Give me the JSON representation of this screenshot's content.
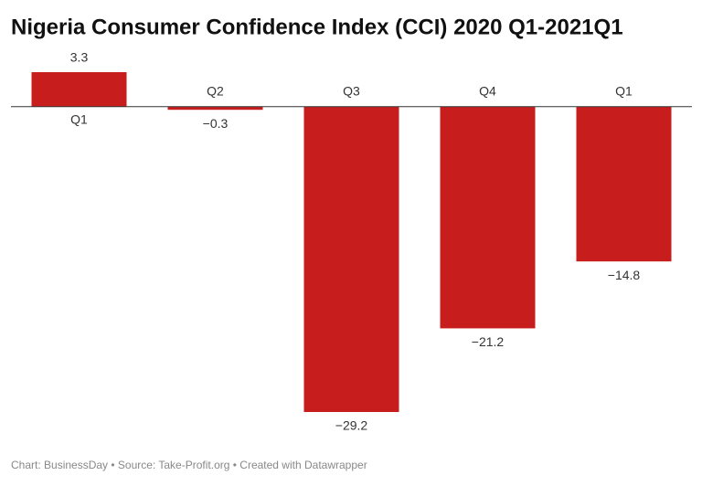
{
  "chart_data": {
    "type": "bar",
    "title": "Nigeria Consumer Confidence Index (CCI) 2020 Q1-2021Q1",
    "categories": [
      "Q1",
      "Q2",
      "Q3",
      "Q4",
      "Q1"
    ],
    "values": [
      3.3,
      -0.3,
      -29.2,
      -21.2,
      -14.8
    ],
    "value_labels": [
      "3.3",
      "−0.3",
      "−29.2",
      "−21.2",
      "−14.8"
    ],
    "color": "#c71e1d",
    "ylim": [
      -29.2,
      3.3
    ],
    "caption": "Chart: BusinessDay • Source: Take-Profit.org • Created with Datawrapper"
  }
}
